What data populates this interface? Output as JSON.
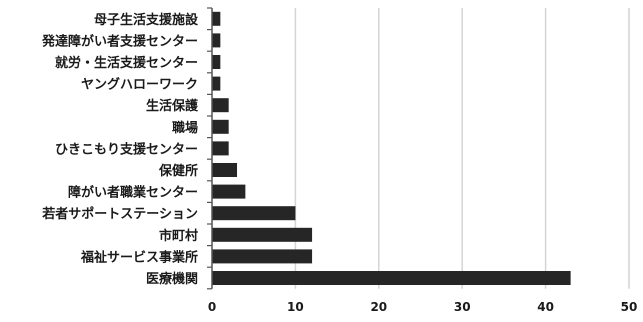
{
  "chart_data": {
    "type": "bar",
    "orientation": "horizontal",
    "title": "",
    "xlabel": "",
    "ylabel": "",
    "categories": [
      "母子生活支援施設",
      "発達障がい者支援センター",
      "就労・生活支援センター",
      "ヤングハローワーク",
      "生活保護",
      "職場",
      "ひきこもり支援センター",
      "保健所",
      "障がい者職業センター",
      "若者サポートステーション",
      "市町村",
      "福祉サービス事業所",
      "医療機関"
    ],
    "values": [
      1,
      1,
      1,
      1,
      2,
      2,
      2,
      3,
      4,
      10,
      12,
      12,
      43
    ],
    "xlim": [
      0,
      50
    ],
    "xticks": [
      "0",
      "10",
      "20",
      "30",
      "40",
      "50"
    ],
    "grid": "vertical",
    "bar_color": "#262626",
    "grid_color": "#d4d4d4",
    "axis_color": "#555555"
  }
}
